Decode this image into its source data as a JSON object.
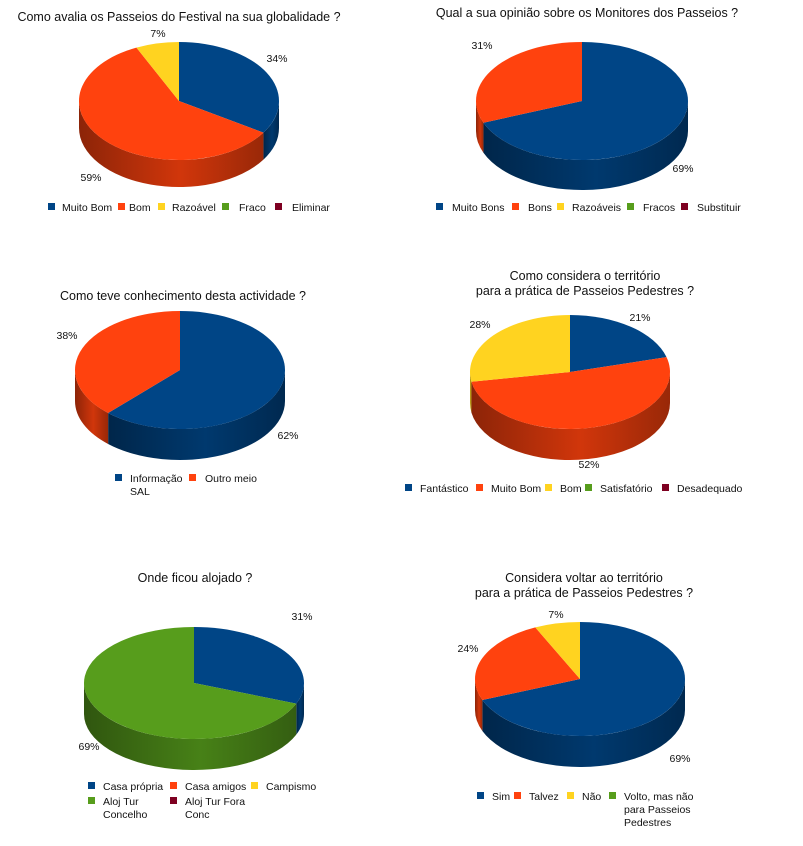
{
  "colors": {
    "blue": "#004586",
    "orange": "#ff420e",
    "yellow": "#ffd320",
    "green": "#579d1c",
    "maroon": "#7e0021"
  },
  "chart_data": [
    {
      "type": "pie",
      "title": [
        "Como avalia os Passeios do Festival na sua globalidade ?"
      ],
      "legend": [
        {
          "name": [
            "Muito Bom"
          ],
          "color": "#004586"
        },
        {
          "name": [
            "Bom"
          ],
          "color": "#ff420e"
        },
        {
          "name": [
            "Razoável"
          ],
          "color": "#ffd320"
        },
        {
          "name": [
            "Fraco"
          ],
          "color": "#579d1c"
        },
        {
          "name": [
            "Eliminar"
          ],
          "color": "#7e0021"
        }
      ],
      "slices": [
        {
          "name": "Muito Bom",
          "value": 34,
          "label": "34%",
          "color": "#004586"
        },
        {
          "name": "Bom",
          "value": 59,
          "label": "59%",
          "color": "#ff420e"
        },
        {
          "name": "Razoável",
          "value": 7,
          "label": "7%",
          "color": "#ffd320"
        }
      ]
    },
    {
      "type": "pie",
      "title": [
        "Qual a sua opinião sobre os Monitores dos Passeios ?"
      ],
      "legend": [
        {
          "name": [
            "Muito Bons"
          ],
          "color": "#004586"
        },
        {
          "name": [
            "Bons"
          ],
          "color": "#ff420e"
        },
        {
          "name": [
            "Razoáveis"
          ],
          "color": "#ffd320"
        },
        {
          "name": [
            "Fracos"
          ],
          "color": "#579d1c"
        },
        {
          "name": [
            "Substituir"
          ],
          "color": "#7e0021"
        }
      ],
      "slices": [
        {
          "name": "Muito Bons",
          "value": 69,
          "label": "69%",
          "color": "#004586"
        },
        {
          "name": "Bons",
          "value": 31,
          "label": "31%",
          "color": "#ff420e"
        }
      ]
    },
    {
      "type": "pie",
      "title": [
        "Como teve conhecimento desta actividade ?"
      ],
      "legend": [
        {
          "name": [
            "Informação",
            "SAL"
          ],
          "color": "#004586"
        },
        {
          "name": [
            "Outro meio"
          ],
          "color": "#ff420e"
        }
      ],
      "slices": [
        {
          "name": "Informação SAL",
          "value": 62,
          "label": "62%",
          "color": "#004586"
        },
        {
          "name": "Outro meio",
          "value": 38,
          "label": "38%",
          "color": "#ff420e"
        }
      ]
    },
    {
      "type": "pie",
      "title": [
        "Como considera o território",
        "para a prática de Passeios Pedestres ?"
      ],
      "legend": [
        {
          "name": [
            "Fantástico"
          ],
          "color": "#004586"
        },
        {
          "name": [
            "Muito Bom"
          ],
          "color": "#ff420e"
        },
        {
          "name": [
            "Bom"
          ],
          "color": "#ffd320"
        },
        {
          "name": [
            "Satisfatório"
          ],
          "color": "#579d1c"
        },
        {
          "name": [
            "Desadequado"
          ],
          "color": "#7e0021"
        }
      ],
      "slices": [
        {
          "name": "Fantástico",
          "value": 21,
          "label": "21%",
          "color": "#004586"
        },
        {
          "name": "Muito Bom",
          "value": 52,
          "label": "52%",
          "color": "#ff420e"
        },
        {
          "name": "Bom",
          "value": 28,
          "label": "28%",
          "color": "#ffd320"
        }
      ]
    },
    {
      "type": "pie",
      "title": [
        "Onde ficou alojado ?"
      ],
      "legend": [
        {
          "name": [
            "Casa própria"
          ],
          "color": "#004586"
        },
        {
          "name": [
            "Casa amigos"
          ],
          "color": "#ff420e"
        },
        {
          "name": [
            "Campismo"
          ],
          "color": "#ffd320"
        },
        {
          "name": [
            "Aloj Tur",
            "Concelho"
          ],
          "color": "#579d1c"
        },
        {
          "name": [
            "Aloj Tur Fora",
            "Conc"
          ],
          "color": "#7e0021"
        }
      ],
      "slices": [
        {
          "name": "Casa própria",
          "value": 31,
          "label": "31%",
          "color": "#004586"
        },
        {
          "name": "Aloj Tur Concelho",
          "value": 69,
          "label": "69%",
          "color": "#579d1c"
        }
      ]
    },
    {
      "type": "pie",
      "title": [
        "Considera voltar ao território",
        "para a prática de Passeios Pedestres ?"
      ],
      "legend": [
        {
          "name": [
            "Sim"
          ],
          "color": "#004586"
        },
        {
          "name": [
            "Talvez"
          ],
          "color": "#ff420e"
        },
        {
          "name": [
            "Não"
          ],
          "color": "#ffd320"
        },
        {
          "name": [
            "Volto, mas não",
            "para Passeios",
            "Pedestres"
          ],
          "color": "#579d1c"
        }
      ],
      "slices": [
        {
          "name": "Sim",
          "value": 69,
          "label": "69%",
          "color": "#004586"
        },
        {
          "name": "Talvez",
          "value": 24,
          "label": "24%",
          "color": "#ff420e"
        },
        {
          "name": "Não",
          "value": 7,
          "label": "7%",
          "color": "#ffd320"
        }
      ]
    }
  ]
}
